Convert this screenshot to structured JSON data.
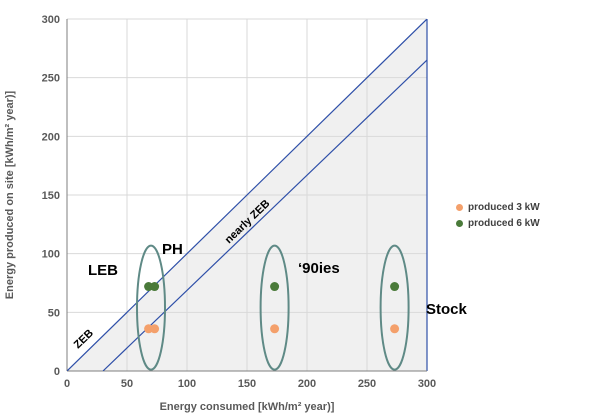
{
  "chart_data": {
    "type": "scatter",
    "xlabel": "Energy consumed [kWh/m² year)]",
    "ylabel": "Energy produced on site [kWh/m² year)]",
    "xlim": [
      0,
      300
    ],
    "ylim": [
      0,
      300
    ],
    "x_ticks": [
      "0",
      "50",
      "100",
      "150",
      "200",
      "250",
      "300"
    ],
    "y_ticks": [
      "0",
      "50",
      "100",
      "150",
      "200",
      "250",
      "300"
    ],
    "grid": true,
    "legend_position": "right",
    "series": [
      {
        "name": "produced 3 kW",
        "color": "#f4a06b",
        "points": [
          {
            "x": 68,
            "y": 36
          },
          {
            "x": 73,
            "y": 36
          },
          {
            "x": 173,
            "y": 36
          },
          {
            "x": 273,
            "y": 36
          }
        ]
      },
      {
        "name": "produced 6 kW",
        "color": "#4a7a3a",
        "points": [
          {
            "x": 68,
            "y": 72
          },
          {
            "x": 73,
            "y": 72
          },
          {
            "x": 173,
            "y": 72
          },
          {
            "x": 273,
            "y": 72
          }
        ]
      }
    ],
    "reference_lines": [
      {
        "label": "ZEB",
        "from": {
          "x": 0,
          "y": 0
        },
        "to": {
          "x": 300,
          "y": 300
        }
      },
      {
        "label": "nearly ZEB",
        "from": {
          "x": 30,
          "y": 0
        },
        "to": {
          "x": 300,
          "y": 265
        }
      }
    ],
    "groups": [
      {
        "label": "LEB",
        "center": {
          "x": 70,
          "y": 54
        }
      },
      {
        "label": "PH",
        "center": {
          "x": 70,
          "y": 54
        }
      },
      {
        "label": "‘90ies",
        "center": {
          "x": 173,
          "y": 54
        }
      },
      {
        "label": "Stock",
        "center": {
          "x": 273,
          "y": 54
        }
      }
    ],
    "colors": {
      "fill_region": "#f0f0f0",
      "lines": "#2e4fa8",
      "ellipse": "#5f8a86"
    }
  }
}
